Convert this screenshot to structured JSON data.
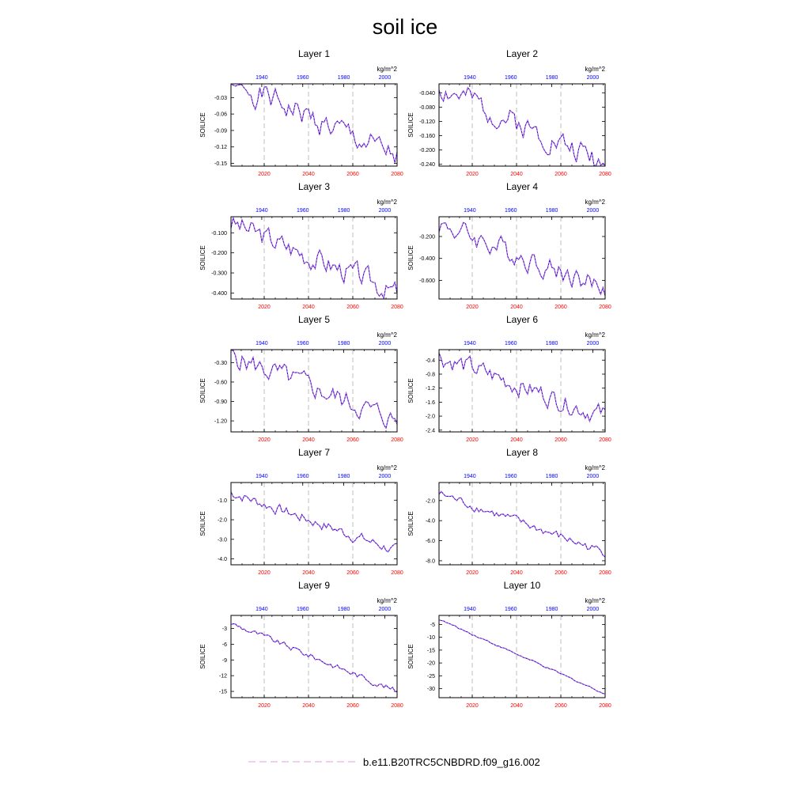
{
  "title": "soil ice",
  "units": "kg/m^2",
  "ylabel": "SOILICE",
  "colors": {
    "line": "#4400cc",
    "dash": "#e0a0e0",
    "bottom_ticks": "#ff0000",
    "top_ticks": "#0000ff",
    "grid": "#b0b0b0"
  },
  "legend": {
    "label": "b.e11.B20TRC5CNBDRD.f09_g16.002"
  },
  "chart_data": [
    {
      "title": "Layer 1",
      "type": "line",
      "xlim": [
        2005,
        2080
      ],
      "x2lim": [
        1925,
        2006
      ],
      "ylim": [
        -0.155,
        -0.005
      ],
      "xticks": [
        2020,
        2040,
        2060,
        2080
      ],
      "x2ticks": [
        1940,
        1960,
        1980,
        2000
      ],
      "yticks": [
        -0.03,
        -0.06,
        -0.09,
        -0.12,
        -0.15
      ],
      "ytick_labels": [
        "-0.03",
        "-0.06",
        "-0.09",
        "-0.12",
        "-0.15"
      ],
      "start": 0.0,
      "end": -0.14,
      "scale": 0.04,
      "seed": 1
    },
    {
      "title": "Layer 2",
      "type": "line",
      "xlim": [
        2005,
        2080
      ],
      "x2lim": [
        1925,
        2006
      ],
      "ylim": [
        -0.245,
        -0.015
      ],
      "xticks": [
        2020,
        2040,
        2060,
        2080
      ],
      "x2ticks": [
        1940,
        1960,
        1980,
        2000
      ],
      "yticks": [
        -0.04,
        -0.08,
        -0.12,
        -0.16,
        -0.2,
        -0.24
      ],
      "ytick_labels": [
        "-0.040",
        "-0.080",
        "-0.120",
        "-0.160",
        "-0.200",
        "-0.240"
      ],
      "start": -0.025,
      "end": -0.235,
      "scale": 0.06,
      "seed": 2
    },
    {
      "title": "Layer 3",
      "type": "line",
      "xlim": [
        2005,
        2080
      ],
      "x2lim": [
        1925,
        2006
      ],
      "ylim": [
        -0.43,
        -0.02
      ],
      "xticks": [
        2020,
        2040,
        2060,
        2080
      ],
      "x2ticks": [
        1940,
        1960,
        1980,
        2000
      ],
      "yticks": [
        -0.1,
        -0.2,
        -0.3,
        -0.4
      ],
      "ytick_labels": [
        "-0.100",
        "-0.200",
        "-0.300",
        "-0.400"
      ],
      "start": -0.05,
      "end": -0.4,
      "scale": 0.1,
      "seed": 3
    },
    {
      "title": "Layer 4",
      "type": "line",
      "xlim": [
        2005,
        2080
      ],
      "x2lim": [
        1925,
        2006
      ],
      "ylim": [
        -0.77,
        -0.02
      ],
      "xticks": [
        2020,
        2040,
        2060,
        2080
      ],
      "x2ticks": [
        1940,
        1960,
        1980,
        2000
      ],
      "yticks": [
        -0.2,
        -0.4,
        -0.6
      ],
      "ytick_labels": [
        "-0.200",
        "-0.400",
        "-0.600"
      ],
      "start": -0.08,
      "end": -0.68,
      "scale": 0.18,
      "seed": 4
    },
    {
      "title": "Layer 5",
      "type": "line",
      "xlim": [
        2005,
        2080
      ],
      "x2lim": [
        1925,
        2006
      ],
      "ylim": [
        -1.37,
        -0.1
      ],
      "xticks": [
        2020,
        2040,
        2060,
        2080
      ],
      "x2ticks": [
        1940,
        1960,
        1980,
        2000
      ],
      "yticks": [
        -0.3,
        -0.6,
        -0.9,
        -1.2
      ],
      "ytick_labels": [
        "-0.30",
        "-0.60",
        "-0.90",
        "-1.20"
      ],
      "start": -0.2,
      "end": -1.2,
      "scale": 0.3,
      "seed": 5
    },
    {
      "title": "Layer 6",
      "type": "line",
      "xlim": [
        2005,
        2080
      ],
      "x2lim": [
        1925,
        2006
      ],
      "ylim": [
        -2.45,
        -0.1
      ],
      "xticks": [
        2020,
        2040,
        2060,
        2080
      ],
      "x2ticks": [
        1940,
        1960,
        1980,
        2000
      ],
      "yticks": [
        -0.4,
        -0.8,
        -1.2,
        -1.6,
        -2.0,
        -2.4
      ],
      "ytick_labels": [
        "-0.4",
        "-0.8",
        "-1.2",
        "-1.6",
        "-2.0",
        "-2.4"
      ],
      "start": -0.3,
      "end": -2.0,
      "scale": 0.5,
      "seed": 6
    },
    {
      "title": "Layer 7",
      "type": "line",
      "xlim": [
        2005,
        2080
      ],
      "x2lim": [
        1925,
        2006
      ],
      "ylim": [
        -4.3,
        -0.1
      ],
      "xticks": [
        2020,
        2040,
        2060,
        2080
      ],
      "x2ticks": [
        1940,
        1960,
        1980,
        2000
      ],
      "yticks": [
        -1,
        -2,
        -3,
        -4
      ],
      "ytick_labels": [
        "-1.0",
        "-2.0",
        "-3.0",
        "-4.0"
      ],
      "start": -0.6,
      "end": -3.6,
      "scale": 0.5,
      "seed": 7
    },
    {
      "title": "Layer 8",
      "type": "line",
      "xlim": [
        2005,
        2080
      ],
      "x2lim": [
        1925,
        2006
      ],
      "ylim": [
        -8.4,
        -0.2
      ],
      "xticks": [
        2020,
        2040,
        2060,
        2080
      ],
      "x2ticks": [
        1940,
        1960,
        1980,
        2000
      ],
      "yticks": [
        -2,
        -4,
        -6,
        -8
      ],
      "ytick_labels": [
        "-2.0",
        "-4.0",
        "-6.0",
        "-8.0"
      ],
      "start": -1.3,
      "end": -7.2,
      "scale": 0.8,
      "seed": 8
    },
    {
      "title": "Layer 9",
      "type": "line",
      "xlim": [
        2005,
        2080
      ],
      "x2lim": [
        1925,
        2006
      ],
      "ylim": [
        -16.2,
        -0.5
      ],
      "xticks": [
        2020,
        2040,
        2060,
        2080
      ],
      "x2ticks": [
        1940,
        1960,
        1980,
        2000
      ],
      "yticks": [
        -3,
        -6,
        -9,
        -12,
        -15
      ],
      "ytick_labels": [
        "-3",
        "-6",
        "-9",
        "-12",
        "-15"
      ],
      "start": -2.0,
      "end": -15.0,
      "scale": 1.0,
      "seed": 9
    },
    {
      "title": "Layer 10",
      "type": "line",
      "xlim": [
        2005,
        2080
      ],
      "x2lim": [
        1925,
        2006
      ],
      "ylim": [
        -33.5,
        -1.5
      ],
      "xticks": [
        2020,
        2040,
        2060,
        2080
      ],
      "x2ticks": [
        1940,
        1960,
        1980,
        2000
      ],
      "yticks": [
        -5,
        -10,
        -15,
        -20,
        -25,
        -30
      ],
      "ytick_labels": [
        "-5",
        "-10",
        "-15",
        "-20",
        "-25",
        "-30"
      ],
      "start": -3.0,
      "end": -32.0,
      "scale": 0.6,
      "seed": 10
    }
  ]
}
